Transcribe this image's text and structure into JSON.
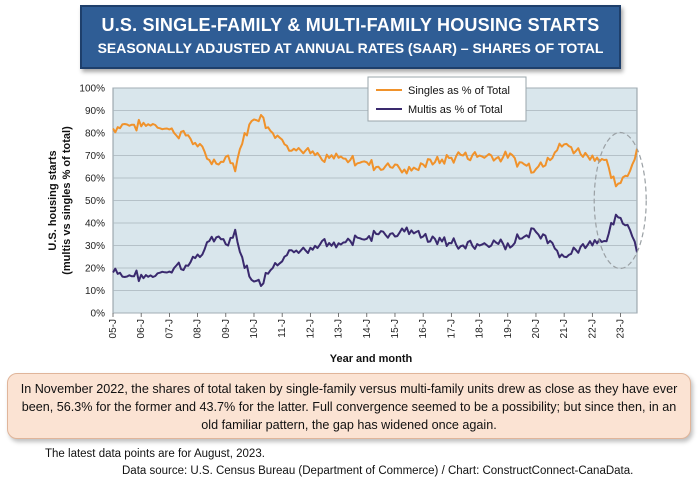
{
  "title": {
    "main": "U.S. SINGLE-FAMILY & MULTI-FAMILY HOUSING STARTS",
    "sub": "SEASONALLY ADJUSTED AT ANNUAL RATES (SAAR) – SHARES OF TOTAL"
  },
  "colors": {
    "singles": "#f0922b",
    "multis": "#3a2a6e",
    "plot_bg": "#d9e6ec",
    "grid": "#a9b5bc",
    "title_bg": "#2f5d95"
  },
  "chart_data": {
    "type": "line",
    "ylabel": "U.S. housing starts\n(multis vs singles % of total)",
    "xlabel": "Year and month",
    "ylim": [
      0,
      100
    ],
    "yticks": [
      "0%",
      "10%",
      "20%",
      "30%",
      "40%",
      "50%",
      "60%",
      "70%",
      "80%",
      "90%",
      "100%"
    ],
    "xticks": [
      "05-J",
      "06-J",
      "07-J",
      "08-J",
      "09-J",
      "10-J",
      "11-J",
      "12-J",
      "13-J",
      "14-J",
      "15-J",
      "16-J",
      "17-J",
      "18-J",
      "19-J",
      "20-J",
      "21-J",
      "22-J",
      "23-J"
    ],
    "x_start": "2005-01",
    "x_end": "2023-08",
    "grid": true,
    "legend_position": "top-right",
    "series": [
      {
        "name": "Singles as % of Total",
        "color": "#f0922b",
        "anchors": [
          [
            "2005-01",
            82
          ],
          [
            "2005-06",
            84
          ],
          [
            "2006-01",
            83
          ],
          [
            "2006-06",
            84
          ],
          [
            "2006-12",
            82
          ],
          [
            "2007-03",
            80
          ],
          [
            "2007-09",
            79
          ],
          [
            "2008-01",
            74
          ],
          [
            "2008-06",
            68
          ],
          [
            "2008-10",
            66
          ],
          [
            "2009-02",
            70
          ],
          [
            "2009-05",
            63
          ],
          [
            "2009-09",
            80
          ],
          [
            "2010-01",
            86
          ],
          [
            "2010-04",
            88
          ],
          [
            "2010-08",
            81
          ],
          [
            "2011-01",
            77
          ],
          [
            "2011-06",
            73
          ],
          [
            "2012-01",
            71
          ],
          [
            "2012-06",
            68
          ],
          [
            "2013-01",
            69
          ],
          [
            "2013-06",
            68
          ],
          [
            "2014-01",
            67
          ],
          [
            "2014-06",
            65
          ],
          [
            "2015-01",
            66
          ],
          [
            "2015-06",
            62
          ],
          [
            "2015-10",
            64
          ],
          [
            "2016-01",
            66
          ],
          [
            "2016-06",
            67
          ],
          [
            "2017-01",
            69
          ],
          [
            "2017-06",
            70
          ],
          [
            "2018-01",
            70
          ],
          [
            "2018-06",
            70
          ],
          [
            "2019-01",
            69
          ],
          [
            "2019-06",
            67
          ],
          [
            "2020-01",
            64
          ],
          [
            "2020-06",
            69
          ],
          [
            "2021-01",
            75
          ],
          [
            "2021-06",
            72
          ],
          [
            "2022-01",
            70
          ],
          [
            "2022-06",
            68
          ],
          [
            "2022-11",
            56.3
          ],
          [
            "2023-03",
            61
          ],
          [
            "2023-06",
            66
          ],
          [
            "2023-08",
            73
          ]
        ]
      },
      {
        "name": "Multis as % of Total",
        "color": "#3a2a6e",
        "anchors": [
          [
            "2005-01",
            18
          ],
          [
            "2005-06",
            16
          ],
          [
            "2006-01",
            17
          ],
          [
            "2006-06",
            16
          ],
          [
            "2006-12",
            18
          ],
          [
            "2007-03",
            20
          ],
          [
            "2007-09",
            21
          ],
          [
            "2008-01",
            26
          ],
          [
            "2008-06",
            32
          ],
          [
            "2008-10",
            34
          ],
          [
            "2009-02",
            30
          ],
          [
            "2009-05",
            37
          ],
          [
            "2009-09",
            20
          ],
          [
            "2010-01",
            14
          ],
          [
            "2010-04",
            12
          ],
          [
            "2010-08",
            19
          ],
          [
            "2011-01",
            23
          ],
          [
            "2011-06",
            27
          ],
          [
            "2012-01",
            29
          ],
          [
            "2012-06",
            32
          ],
          [
            "2013-01",
            31
          ],
          [
            "2013-06",
            32
          ],
          [
            "2014-01",
            33
          ],
          [
            "2014-06",
            35
          ],
          [
            "2015-01",
            34
          ],
          [
            "2015-06",
            38
          ],
          [
            "2015-10",
            36
          ],
          [
            "2016-01",
            34
          ],
          [
            "2016-06",
            33
          ],
          [
            "2017-01",
            31
          ],
          [
            "2017-06",
            30
          ],
          [
            "2018-01",
            30
          ],
          [
            "2018-06",
            30
          ],
          [
            "2019-01",
            31
          ],
          [
            "2019-06",
            33
          ],
          [
            "2020-01",
            36
          ],
          [
            "2020-06",
            31
          ],
          [
            "2021-01",
            25
          ],
          [
            "2021-06",
            28
          ],
          [
            "2022-01",
            30
          ],
          [
            "2022-06",
            32
          ],
          [
            "2022-11",
            43.7
          ],
          [
            "2023-03",
            39
          ],
          [
            "2023-06",
            34
          ],
          [
            "2023-08",
            27
          ]
        ]
      }
    ]
  },
  "note": "In November 2022, the shares of total taken by single-family versus multi-family units drew as close as they have ever been, 56.3% for the former and 43.7% for the latter. Full convergence seemed to be a possibility; but since then, in an old familiar pattern, the gap has widened once again.",
  "footnote": "The latest data points are for August, 2023.",
  "source": "Data source: U.S. Census Bureau (Department of Commerce) / Chart: ConstructConnect-CanaData."
}
